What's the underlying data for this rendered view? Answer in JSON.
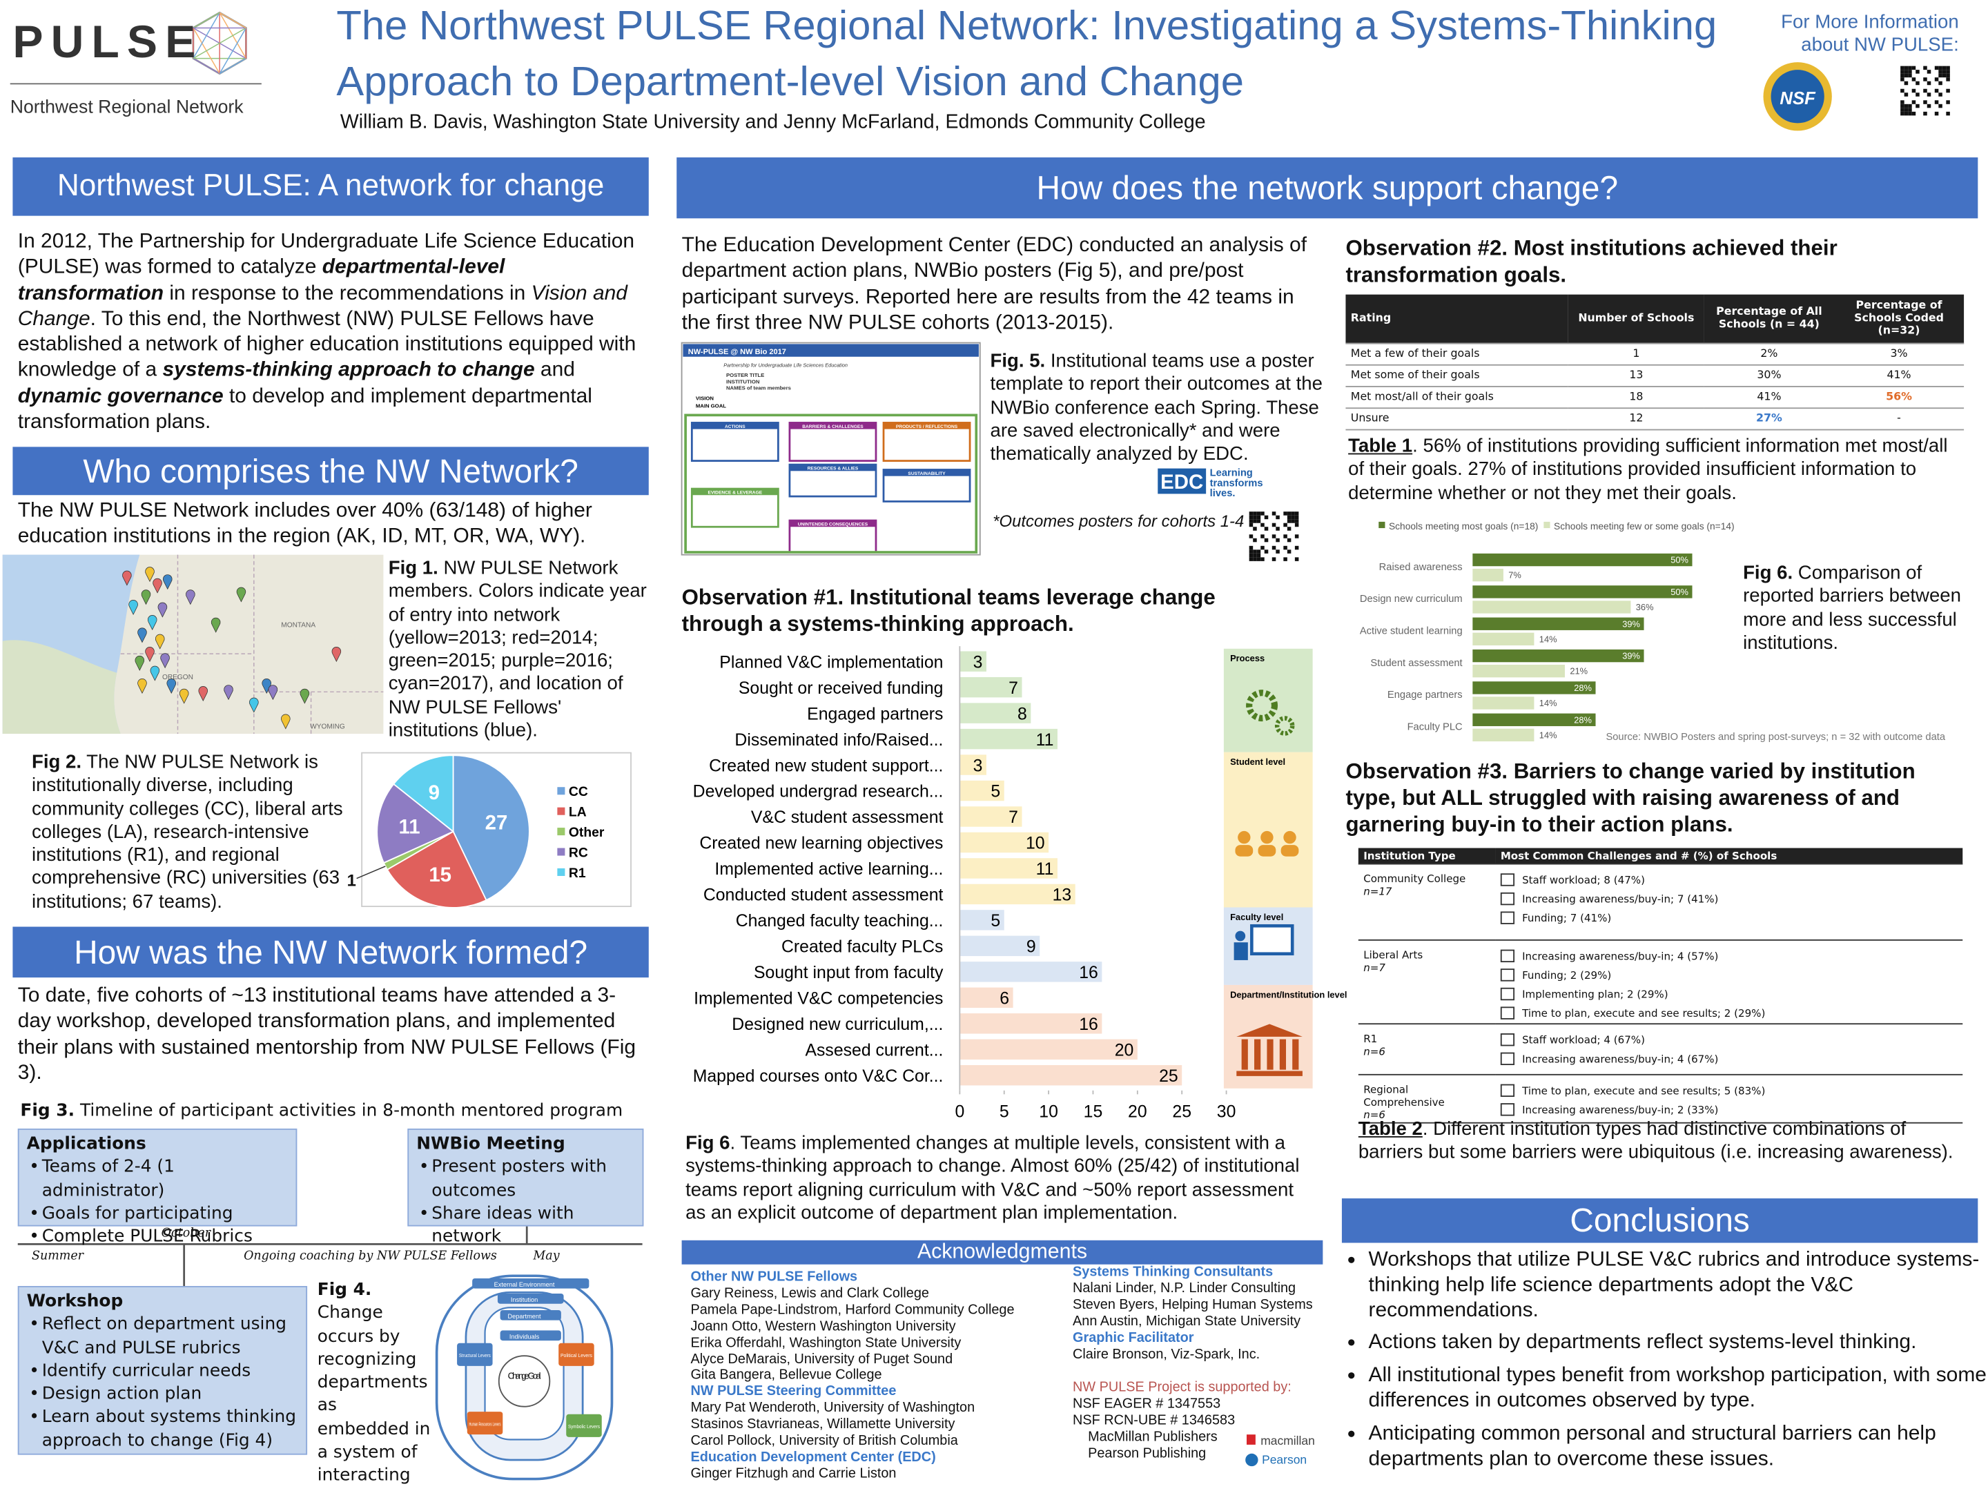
{
  "header": {
    "logo": "PULSE",
    "logo_subtitle": "Northwest Regional Network",
    "title": [
      "The Northwest PULSE Regional Network: Investigating a Systems-Thinking",
      "Approach to Department-level Vision and Change"
    ],
    "authors": "William B. Davis, Washington State University and Jenny McFarland, Edmonds Community College",
    "more_info": [
      "For More Information",
      "about NW PULSE:"
    ],
    "nsf": "NSF"
  },
  "left": {
    "network_for_change": {
      "heading": "Northwest PULSE:  A network for change",
      "text": [
        "In 2012, The Partnership for Undergraduate Life Science Education (PULSE) was formed to catalyze ",
        "departmental-level transformation",
        " in response to the recommendations in ",
        "Vision and Change",
        ". To this end, the Northwest (NW) PULSE Fellows have established a network of higher education institutions equipped with knowledge of a ",
        "systems-thinking approach to change",
        " and ",
        "dynamic governance",
        " to develop and implement departmental transformation plans."
      ]
    },
    "who": {
      "heading": "Who comprises the NW Network?",
      "text": "The NW PULSE Network includes over 40% (63/148) of higher education institutions in the region (AK, ID, MT, OR, WA, WY).",
      "map_labels": [
        "MONTANA",
        "OREGON",
        "WYOMING"
      ],
      "fig1": {
        "label": "Fig 1.",
        "text": " NW PULSE Network members. Colors indicate year of entry into network (yellow=2013; red=2014; green=2015; purple=2016; cyan=2017), and location of NW PULSE Fellows' institutions (blue)."
      },
      "fig2": {
        "label": "Fig 2.",
        "text": "  The NW PULSE Network is institutionally diverse, including community colleges (CC), liberal arts colleges (LA), research-intensive institutions (R1), and regional comprehensive (RC) universities (63 institutions; 67 teams)."
      }
    },
    "formed": {
      "heading": "How was the NW Network formed?",
      "text": "To date, five cohorts of ~13 institutional teams have attended a 3-day workshop, developed transformation plans, and implemented their plans with sustained mentorship from NW PULSE Fellows (Fig 3).",
      "fig3": {
        "label": "Fig 3.",
        "text": "  Timeline of participant activities in 8-month mentored program"
      },
      "applications": {
        "title": "Applications",
        "items": [
          "Teams of 2-4 (1 administrator)",
          "Goals for participating",
          "Complete PULSE Rubrics"
        ]
      },
      "nwbio": {
        "title": "NWBio Meeting",
        "items": [
          "Present posters with outcomes",
          "Share ideas with network"
        ]
      },
      "timeline": {
        "october": "October",
        "summer": "Summer",
        "ongoing": "Ongoing coaching by NW PULSE Fellows",
        "may": "May"
      },
      "workshop": {
        "title": "Workshop",
        "items": [
          "Reflect on department using V&C and PULSE rubrics",
          "Identify curricular needs",
          "Design action plan",
          "Learn about systems thinking approach to change (Fig 4)"
        ]
      },
      "fig4": {
        "label": "Fig 4.",
        "text": " Change occurs by recognizing departments as embedded in a system of interacting parties (Ann Austin)"
      },
      "fig4_diagram": {
        "external": "External Environment",
        "institution": "Institution",
        "department": "Department",
        "individuals": "Individuals",
        "structural": "Structural Levers",
        "political": "Political Levers",
        "human": "Human Resources Levers",
        "symbolic": "Symbolic Levers",
        "goal": "Change Goal"
      }
    }
  },
  "pie_chart": {
    "type": "pie",
    "categories": [
      "CC",
      "LA",
      "Other",
      "RC",
      "R1"
    ],
    "values": [
      27,
      15,
      1,
      11,
      9
    ],
    "colors": [
      "#6fa3dc",
      "#e0605c",
      "#9bc96a",
      "#8e7cc3",
      "#5fd0ef"
    ]
  },
  "middle": {
    "heading": "How does the network support change?",
    "intro": "The Education Development Center (EDC) conducted an analysis of department action plans, NWBio posters (Fig 5), and pre/post participant surveys. Reported here are results from the 42 teams in the first three NW PULSE cohorts (2013-2015).",
    "thumbnail": {
      "title": "NW-PULSE @ NW Bio 2017",
      "subtitle": "Partnership for Undergraduate Life Sciences Education",
      "poster_title": "POSTER TITLE",
      "institution": "INSTITUTION",
      "names": "NAMES of team members",
      "vision": "VISION",
      "main_goal": "MAIN GOAL",
      "boxes": [
        "ACTIONS",
        "BARRIERS & CHALLENGES",
        "PRODUCTS / REFLECTIONS",
        "EVIDENCE & LEVERAGE",
        "RESOURCES & ALLIES",
        "SUSTAINABILITY",
        "UNINTENDED CONSEQUENCES"
      ]
    },
    "fig5": {
      "label": "Fig. 5.",
      "text": "  Institutional teams use a poster template to report their outcomes at the NWBio conference each Spring.  These are saved electronically* and were thematically analyzed by EDC."
    },
    "edc": {
      "logo": "EDC",
      "tagline": "Learning transforms lives."
    },
    "footnote": "*Outcomes posters for cohorts 1-4",
    "observation1": "Observation #1.  Institutional teams leverage change through a systems-thinking approach.",
    "fig6": {
      "label": "Fig 6",
      "text": ". Teams implemented changes at multiple levels, consistent with a systems-thinking approach to change. Almost 60% (25/42) of institutional teams report aligning curriculum with V&C and ~50% report assessment as an explicit outcome of department plan implementation."
    }
  },
  "obs1_chart": {
    "type": "bar",
    "orientation": "horizontal",
    "xlim": [
      0,
      30
    ],
    "xticks": [
      0,
      5,
      10,
      15,
      20,
      25,
      30
    ],
    "groups": [
      {
        "label": "Process",
        "color": "#d6e9c9",
        "categories": [
          "Planned V&C implementation",
          "Sought or received funding",
          "Engaged partners",
          "Disseminated info/Raised..."
        ],
        "values": [
          3,
          7,
          8,
          11
        ]
      },
      {
        "label": "Student level",
        "color": "#fcefc4",
        "categories": [
          "Created new student support...",
          "Developed undergrad research...",
          "V&C student assessment",
          "Created new learning objectives",
          "Implemented active learning...",
          "Conducted student assessment"
        ],
        "values": [
          3,
          5,
          7,
          10,
          11,
          13
        ]
      },
      {
        "label": "Faculty level",
        "color": "#dae5f3",
        "categories": [
          "Changed faculty teaching...",
          "Created faculty PLCs",
          "Sought input from faculty"
        ],
        "values": [
          5,
          9,
          16
        ]
      },
      {
        "label": "Department/Institution level",
        "color": "#fadfcf",
        "categories": [
          "Implemented V&C competencies",
          "Designed new curriculum,...",
          "Assesed current...",
          "Mapped courses onto V&C Cor..."
        ],
        "values": [
          6,
          16,
          20,
          25
        ]
      }
    ]
  },
  "acknowledgments": {
    "heading": "Acknowledgments",
    "left": [
      {
        "title": "Other NW PULSE Fellows",
        "names": [
          "Gary Reiness, Lewis and Clark College",
          "Pamela Pape-Lindstrom, Harford Community College",
          "Joann Otto, Western Washington University",
          "Erika Offerdahl, Washington State University",
          "Alyce DeMarais, University of Puget Sound",
          "Gita Bangera, Bellevue College"
        ]
      },
      {
        "title": "NW PULSE Steering Committee",
        "names": [
          "Mary Pat Wenderoth, University of Washington",
          "Stasinos Stavrianeas, Willamette University",
          "Carol Pollock, University of British Columbia"
        ]
      },
      {
        "title": "Education Development Center (EDC)",
        "names": [
          "Ginger Fitzhugh and Carrie Liston"
        ]
      }
    ],
    "right": [
      {
        "title": "Systems Thinking Consultants",
        "names": [
          "Nalani Linder, N.P. Linder Consulting",
          "Steven Byers, Helping Human Systems",
          "Ann Austin, Michigan State University"
        ]
      },
      {
        "title": "Graphic Facilitator",
        "names": [
          "Claire Bronson, Viz-Spark, Inc."
        ]
      }
    ],
    "support": {
      "title": "NW PULSE Project is supported by:",
      "items": [
        "NSF EAGER # 1347553",
        "NSF RCN-UBE # 1346583",
        "MacMillan Publishers",
        "Pearson Publishing"
      ]
    },
    "logos": [
      "macmillan",
      "Pearson"
    ]
  },
  "right": {
    "observation2": "Observation #2.  Most institutions achieved their transformation goals.",
    "table1_caption": {
      "label": "Table 1",
      "text": ".  56% of institutions providing sufficient information met most/all of their goals. 27% of institutions provided insufficient information to determine whether or not they met their goals."
    },
    "fig6": {
      "label": "Fig 6.",
      "text": "  Comparison of reported barriers between more and less successful institutions."
    },
    "observation3": "Observation #3.  Barriers to change varied by institution type, but ALL struggled with raising awareness of and garnering buy-in to their action plans.",
    "table2_caption": {
      "label": "Table 2",
      "text": ".  Different institution types had distinctive combinations of barriers but some barriers were ubiquitous (i.e. increasing awareness)."
    }
  },
  "table1": {
    "header": [
      "Rating",
      "Number of Schools",
      "Percentage of All Schools (n = 44)",
      "Percentage of Schools Coded (n=32)"
    ],
    "rows": [
      [
        "Met a few of their goals",
        1,
        "2%",
        "3%"
      ],
      [
        "Met some of their goals",
        13,
        "30%",
        "41%"
      ],
      [
        "Met most/all of their goals",
        18,
        "41%",
        "56%"
      ],
      [
        "Unsure",
        12,
        "27%",
        "-"
      ]
    ]
  },
  "barrier_chart": {
    "type": "bar",
    "orientation": "horizontal",
    "categories": [
      "Raised awareness",
      "Design new curriculum",
      "Active student learning",
      "Student assessment",
      "Engage partners",
      "Faculty PLC"
    ],
    "series": [
      {
        "name": "Schools meeting most goals (n=18)",
        "color": "#5a7d2c",
        "values": [
          50,
          50,
          39,
          39,
          28,
          28
        ],
        "value_labels": [
          "50%",
          "50%",
          "39%",
          "39%",
          "28%",
          "28%"
        ]
      },
      {
        "name": "Schools meeting few or some goals (n=14)",
        "color": "#d8e4bc",
        "values": [
          7,
          36,
          14,
          21,
          14,
          14
        ],
        "value_labels": [
          "7%",
          "36%",
          "14%",
          "21%",
          "14%",
          "14%"
        ]
      }
    ],
    "source": "Source: NWBIO Posters and spring post-surveys; n = 32 with outcome data"
  },
  "table2": {
    "header": [
      "Institution Type",
      "Most Common Challenges and # (%) of Schools"
    ],
    "rows": [
      {
        "type": "Community College",
        "n": "n=17",
        "challenges": [
          "Staff workload; 8 (47%)",
          "Increasing awareness/buy-in; 7 (41%)",
          "Funding; 7 (41%)"
        ]
      },
      {
        "type": "Liberal Arts",
        "n": "n=7",
        "challenges": [
          "Increasing awareness/buy-in; 4 (57%)",
          "Funding; 2 (29%)",
          "Implementing plan; 2 (29%)",
          "Time to plan, execute and see results; 2 (29%)"
        ]
      },
      {
        "type": "R1",
        "n": "n=6",
        "challenges": [
          "Staff workload; 4 (67%)",
          "Increasing awareness/buy-in; 4 (67%)"
        ]
      },
      {
        "type": "Regional Comprehensive",
        "n": "n=6",
        "challenges": [
          "Time to plan, execute and see results; 5 (83%)",
          "Increasing awareness/buy-in; 2 (33%)"
        ]
      }
    ]
  },
  "conclusions": {
    "heading": "Conclusions",
    "items": [
      "Workshops that utilize PULSE V&C rubrics and introduce systems-thinking help life science departments adopt the V&C recommendations.",
      "Actions taken by departments reflect systems-level thinking.",
      "All institutional types benefit from workshop participation, with some differences in outcomes observed by type.",
      "Anticipating common personal and structural barriers can help departments plan to overcome these issues."
    ]
  }
}
